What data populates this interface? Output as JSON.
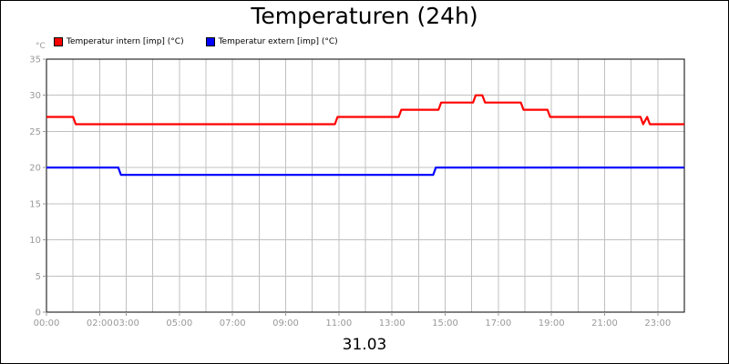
{
  "chart_data": {
    "type": "line",
    "title": "Temperaturen (24h)",
    "ylabel": "°C",
    "xlabel": "31.03",
    "ylim": [
      0,
      35
    ],
    "xlim": [
      0,
      24
    ],
    "grid": true,
    "legend_position": "top-left",
    "y_ticks": [
      "0",
      "5",
      "10",
      "15",
      "20",
      "25",
      "30",
      "35"
    ],
    "x_ticks": [
      {
        "x": 0,
        "label": "00:00"
      },
      {
        "x": 2,
        "label": "02:00"
      },
      {
        "x": 3,
        "label": "03:00"
      },
      {
        "x": 5,
        "label": "05:00"
      },
      {
        "x": 7,
        "label": "07:00"
      },
      {
        "x": 9,
        "label": "09:00"
      },
      {
        "x": 11,
        "label": "11:00"
      },
      {
        "x": 13,
        "label": "13:00"
      },
      {
        "x": 15,
        "label": "15:00"
      },
      {
        "x": 17,
        "label": "17:00"
      },
      {
        "x": 19,
        "label": "19:00"
      },
      {
        "x": 21,
        "label": "21:00"
      },
      {
        "x": 23,
        "label": "23:00"
      }
    ],
    "series": [
      {
        "name": "Temperatur intern [imp] (°C)",
        "color": "#ff0000",
        "points": [
          [
            0,
            27
          ],
          [
            1.0,
            27
          ],
          [
            1.1,
            26
          ],
          [
            10.85,
            26
          ],
          [
            10.95,
            27
          ],
          [
            13.25,
            27
          ],
          [
            13.35,
            28
          ],
          [
            14.75,
            28
          ],
          [
            14.85,
            29
          ],
          [
            16.05,
            29
          ],
          [
            16.15,
            30
          ],
          [
            16.4,
            30
          ],
          [
            16.5,
            29
          ],
          [
            17.85,
            29
          ],
          [
            17.95,
            28
          ],
          [
            18.85,
            28
          ],
          [
            18.95,
            27
          ],
          [
            22.35,
            27
          ],
          [
            22.45,
            26
          ],
          [
            22.6,
            27
          ],
          [
            22.7,
            26
          ],
          [
            24,
            26
          ]
        ]
      },
      {
        "name": "Temperatur extern [imp] (°C)",
        "color": "#0000ff",
        "points": [
          [
            0,
            20
          ],
          [
            2.7,
            20
          ],
          [
            2.8,
            19
          ],
          [
            14.55,
            19
          ],
          [
            14.65,
            20
          ],
          [
            24,
            20
          ]
        ]
      }
    ]
  }
}
